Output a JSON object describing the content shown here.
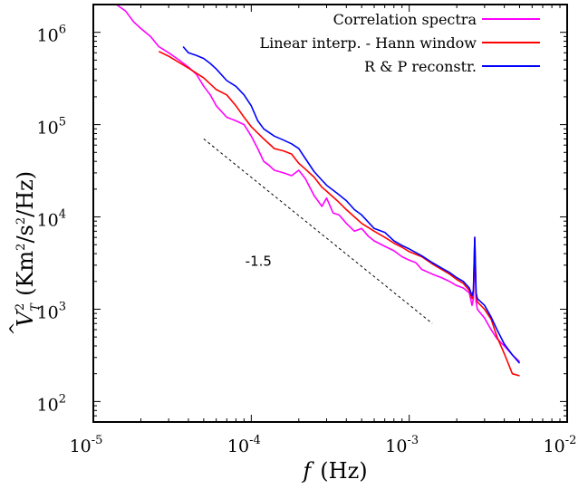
{
  "chart_data": {
    "type": "line",
    "title": "",
    "xlabel": "f (Hz)",
    "ylabel": "V_T^2 (Km^2/s^2/Hz)",
    "xscale": "log",
    "yscale": "log",
    "xlim": [
      1e-05,
      0.01
    ],
    "ylim": [
      60,
      2000000
    ],
    "grid": false,
    "legend_position": "top-right",
    "x_ticks": [
      {
        "mantissa": "10",
        "exp": "-5"
      },
      {
        "mantissa": "10",
        "exp": "-4"
      },
      {
        "mantissa": "10",
        "exp": "-3"
      },
      {
        "mantissa": "10",
        "exp": "-2"
      }
    ],
    "y_ticks": [
      {
        "mantissa": "10",
        "exp": "2"
      },
      {
        "mantissa": "10",
        "exp": "3"
      },
      {
        "mantissa": "10",
        "exp": "4"
      },
      {
        "mantissa": "10",
        "exp": "5"
      },
      {
        "mantissa": "10",
        "exp": "6"
      }
    ],
    "series": [
      {
        "name": "Correlation spectra",
        "color": "#ff00ff",
        "x": [
          1.4e-05,
          1.6e-05,
          1.8e-05,
          2e-05,
          2.3e-05,
          2.6e-05,
          3e-05,
          3.5e-05,
          4e-05,
          4.5e-05,
          5e-05,
          5.5e-05,
          6e-05,
          7e-05,
          8e-05,
          9e-05,
          0.0001,
          0.00011,
          0.00012,
          0.00013,
          0.00014,
          0.00016,
          0.00018,
          0.0002,
          0.00022,
          0.00025,
          0.00028,
          0.0003,
          0.00033,
          0.00036,
          0.0004,
          0.00045,
          0.0005,
          0.00055,
          0.0006,
          0.0007,
          0.0008,
          0.0009,
          0.001,
          0.0011,
          0.0012,
          0.0014,
          0.0016,
          0.0018,
          0.002,
          0.0022,
          0.0024,
          0.0025,
          0.00255,
          0.0026,
          0.00265,
          0.0027,
          0.003,
          0.0033,
          0.0036,
          0.004,
          0.0045,
          0.005
        ],
        "y": [
          2000000,
          1700000,
          1300000,
          1100000,
          900000,
          700000,
          600000,
          500000,
          420000,
          350000,
          260000,
          210000,
          160000,
          120000,
          110000,
          100000,
          75000,
          55000,
          40000,
          36000,
          32000,
          30000,
          28000,
          32000,
          26000,
          17000,
          13000,
          16000,
          11000,
          10500,
          8500,
          7000,
          7500,
          6200,
          5500,
          4800,
          4300,
          3700,
          3400,
          3200,
          2700,
          2400,
          2200,
          2000,
          1800,
          1700,
          1500,
          1100,
          1300,
          4800,
          1200,
          1000,
          800,
          600,
          480,
          400,
          320,
          270
        ]
      },
      {
        "name": "Linear interp. - Hann window",
        "color": "#ff0000",
        "x": [
          2.6e-05,
          3e-05,
          3.5e-05,
          4e-05,
          5e-05,
          6e-05,
          7e-05,
          8e-05,
          9e-05,
          0.0001,
          0.00012,
          0.00014,
          0.00016,
          0.00018,
          0.0002,
          0.00022,
          0.00025,
          0.00028,
          0.0003,
          0.00035,
          0.0004,
          0.00045,
          0.0005,
          0.0006,
          0.0007,
          0.0008,
          0.0009,
          0.001,
          0.0012,
          0.0014,
          0.0016,
          0.0018,
          0.002,
          0.0022,
          0.0024,
          0.0025,
          0.00255,
          0.0026,
          0.00265,
          0.0027,
          0.003,
          0.0033,
          0.0036,
          0.004,
          0.0045,
          0.005
        ],
        "y": [
          620000,
          550000,
          470000,
          410000,
          320000,
          240000,
          210000,
          160000,
          120000,
          95000,
          70000,
          55000,
          52000,
          48000,
          38000,
          33000,
          27000,
          21000,
          19000,
          15000,
          12000,
          10000,
          8500,
          7000,
          6000,
          5200,
          4700,
          4200,
          3700,
          3100,
          2700,
          2400,
          2100,
          1900,
          1600,
          1300,
          1500,
          6000,
          1400,
          1200,
          1000,
          780,
          500,
          330,
          200,
          190
        ]
      },
      {
        "name": "R & P reconstr.",
        "color": "#0000ff",
        "x": [
          3.7e-05,
          4e-05,
          4.5e-05,
          5e-05,
          5.5e-05,
          6e-05,
          7e-05,
          8e-05,
          9e-05,
          0.0001,
          0.00011,
          0.00012,
          0.00014,
          0.00016,
          0.00018,
          0.0002,
          0.00022,
          0.00025,
          0.00028,
          0.0003,
          0.00035,
          0.0004,
          0.00045,
          0.0005,
          0.0006,
          0.0007,
          0.0008,
          0.0009,
          0.001,
          0.0012,
          0.0014,
          0.0016,
          0.0018,
          0.002,
          0.0022,
          0.0024,
          0.0025,
          0.00255,
          0.0026,
          0.00265,
          0.0027,
          0.003,
          0.0033,
          0.0036,
          0.004,
          0.0045,
          0.005
        ],
        "y": [
          700000,
          600000,
          560000,
          520000,
          460000,
          400000,
          300000,
          260000,
          210000,
          160000,
          110000,
          90000,
          75000,
          68000,
          62000,
          55000,
          43000,
          31000,
          25000,
          22000,
          18000,
          15000,
          12000,
          10500,
          7500,
          6800,
          5500,
          4900,
          4500,
          3800,
          3200,
          2800,
          2500,
          2200,
          2000,
          1700,
          1400,
          1600,
          6000,
          1500,
          1300,
          1100,
          820,
          600,
          420,
          320,
          260
        ]
      }
    ],
    "reference_line": {
      "slope": -1.5,
      "label": "-1.5",
      "x": [
        5e-05,
        0.0014
      ],
      "y": [
        70000,
        700
      ],
      "style": "dashed"
    }
  }
}
